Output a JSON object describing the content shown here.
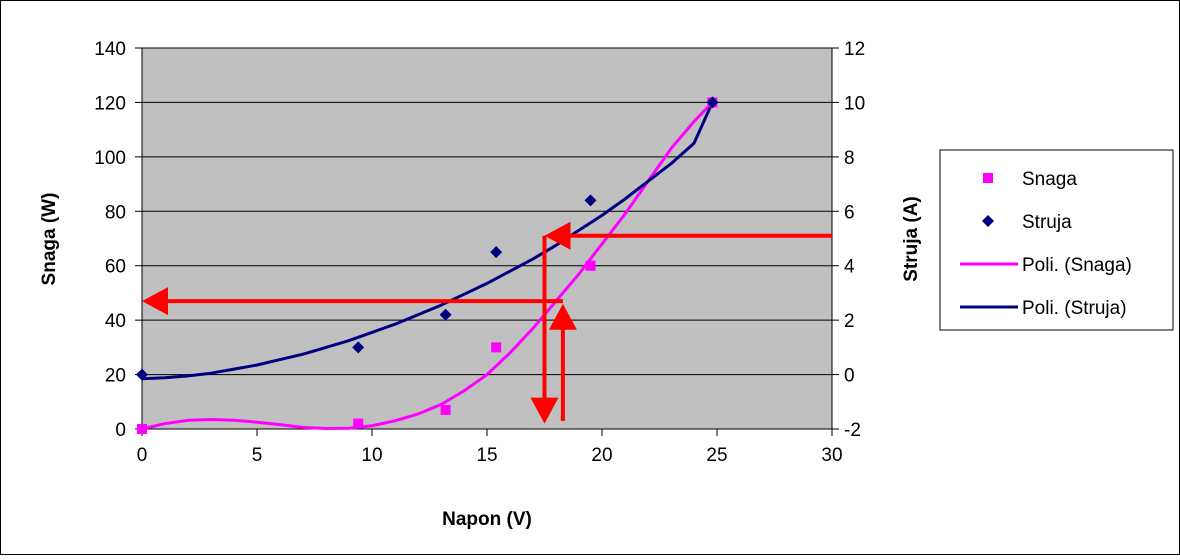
{
  "chart_data": {
    "type": "scatter",
    "title": "",
    "xlabel": "Napon (V)",
    "ylabel_left": "Snaga (W)",
    "ylabel_right": "Struja (A)",
    "xlim": [
      0,
      30
    ],
    "x_ticks": [
      0,
      5,
      10,
      15,
      20,
      25,
      30
    ],
    "ylim_left": [
      0,
      140
    ],
    "y_left_ticks": [
      0,
      20,
      40,
      60,
      80,
      100,
      120,
      140
    ],
    "ylim_right": [
      -2,
      12
    ],
    "y_right_ticks": [
      -2,
      0,
      2,
      4,
      6,
      8,
      10,
      12
    ],
    "grid": "horizontal",
    "plot_background": "#c0c0c0",
    "legend_position": "right",
    "series": [
      {
        "name": "Snaga",
        "kind": "scatter",
        "marker": "square",
        "axis": "left",
        "color": "#ff00ff",
        "x": [
          0,
          9.4,
          13.2,
          15.4,
          19.5,
          24.8
        ],
        "y": [
          0,
          2,
          7,
          30,
          60,
          120
        ]
      },
      {
        "name": "Struja",
        "kind": "scatter",
        "marker": "diamond",
        "axis": "right",
        "color": "#000080",
        "x": [
          0,
          9.4,
          13.2,
          15.4,
          19.5,
          24.8
        ],
        "y": [
          0,
          1,
          2.2,
          4.5,
          6.4,
          10
        ]
      },
      {
        "name": "Poli. (Snaga)",
        "kind": "line",
        "axis": "left",
        "color": "#ff00ff",
        "x": [
          0,
          1,
          2,
          3,
          4,
          5,
          6,
          7,
          8,
          9,
          10,
          11,
          12,
          13,
          14,
          15,
          16,
          17,
          18,
          19,
          20,
          21,
          22,
          23,
          24,
          24.8
        ],
        "y": [
          0,
          2,
          3.2,
          3.5,
          3.2,
          2.5,
          1.6,
          0.6,
          0.2,
          0.3,
          1.2,
          3,
          5.5,
          9,
          14,
          20,
          28,
          37,
          47,
          57,
          68,
          79,
          91,
          103,
          113,
          120
        ]
      },
      {
        "name": "Poli. (Struja)",
        "kind": "line",
        "axis": "right",
        "color": "#000080",
        "x": [
          0,
          1,
          2,
          3,
          4,
          5,
          6,
          7,
          8,
          9,
          10,
          11,
          12,
          13,
          14,
          15,
          16,
          17,
          18,
          19,
          20,
          21,
          22,
          23,
          24,
          24.8
        ],
        "y": [
          -0.15,
          -0.12,
          -0.05,
          0.05,
          0.2,
          0.35,
          0.55,
          0.75,
          1,
          1.25,
          1.55,
          1.85,
          2.2,
          2.55,
          2.95,
          3.35,
          3.8,
          4.25,
          4.75,
          5.3,
          5.85,
          6.45,
          7.1,
          7.75,
          8.5,
          10
        ]
      }
    ],
    "annotations": [
      {
        "kind": "arrow",
        "color": "#ff0000",
        "axis": "right",
        "from": [
          30,
          5.1
        ],
        "to": [
          17.5,
          5.1
        ]
      },
      {
        "kind": "line",
        "color": "#ff0000",
        "axis": "left",
        "from": [
          17.5,
          71
        ],
        "to": [
          17.5,
          62
        ]
      },
      {
        "kind": "arrow",
        "color": "#ff0000",
        "axis": "left",
        "from": [
          17.5,
          62
        ],
        "to": [
          17.5,
          2
        ]
      },
      {
        "kind": "line",
        "color": "#ff0000",
        "axis": "left",
        "from": [
          18.3,
          47
        ],
        "to": [
          17.5,
          47
        ]
      },
      {
        "kind": "arrow",
        "color": "#ff0000",
        "axis": "left",
        "from": [
          17.5,
          47
        ],
        "to": [
          0,
          47
        ]
      },
      {
        "kind": "arrow",
        "color": "#ff0000",
        "axis": "left",
        "from": [
          18.3,
          3
        ],
        "to": [
          18.3,
          46
        ]
      }
    ]
  }
}
